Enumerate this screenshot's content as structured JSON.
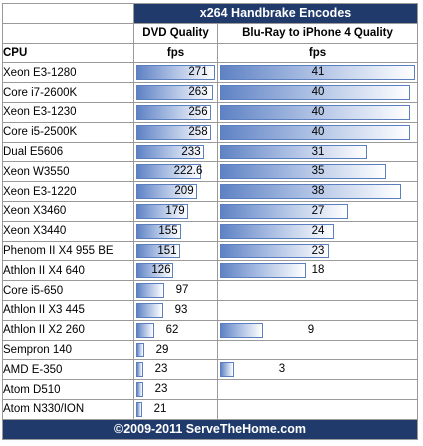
{
  "chart_data": {
    "type": "bar",
    "title": "x264 Handbrake Encodes",
    "footer": "©2009-2011 ServeTheHome.com",
    "category_header": "CPU",
    "colors": {
      "header_bg": "#1f3a6b",
      "bar": "#5f82c4"
    },
    "categories": [
      "Xeon E3-1280",
      "Core i7-2600K",
      "Xeon E3-1230",
      "Core i5-2500K",
      "Dual E5606",
      "Xeon W3550",
      "Xeon E3-1220",
      "Xeon X3460",
      "Xeon X3440",
      "Phenom II X4 955 BE",
      "Athlon II X4 640",
      "Core i5-650",
      "Athlon II X3 445",
      "Athlon II X2 260",
      "Sempron 140",
      "AMD E-350",
      "Atom D510",
      "Atom N330/ION"
    ],
    "series": [
      {
        "name": "DVD Quality",
        "unit": "fps",
        "max": 271,
        "values": [
          "271",
          "263",
          "256",
          "258",
          "233",
          "222.6",
          "209",
          "179",
          "155",
          "151",
          "126",
          "97",
          "93",
          "62",
          "29",
          "23",
          "23",
          "21"
        ]
      },
      {
        "name": "Blu-Ray to iPhone 4 Quality",
        "unit": "fps",
        "max": 41,
        "values": [
          "41",
          "40",
          "40",
          "40",
          "31",
          "35",
          "38",
          "27",
          "24",
          "23",
          "18",
          null,
          null,
          "9",
          null,
          "3",
          null,
          null
        ]
      }
    ]
  }
}
